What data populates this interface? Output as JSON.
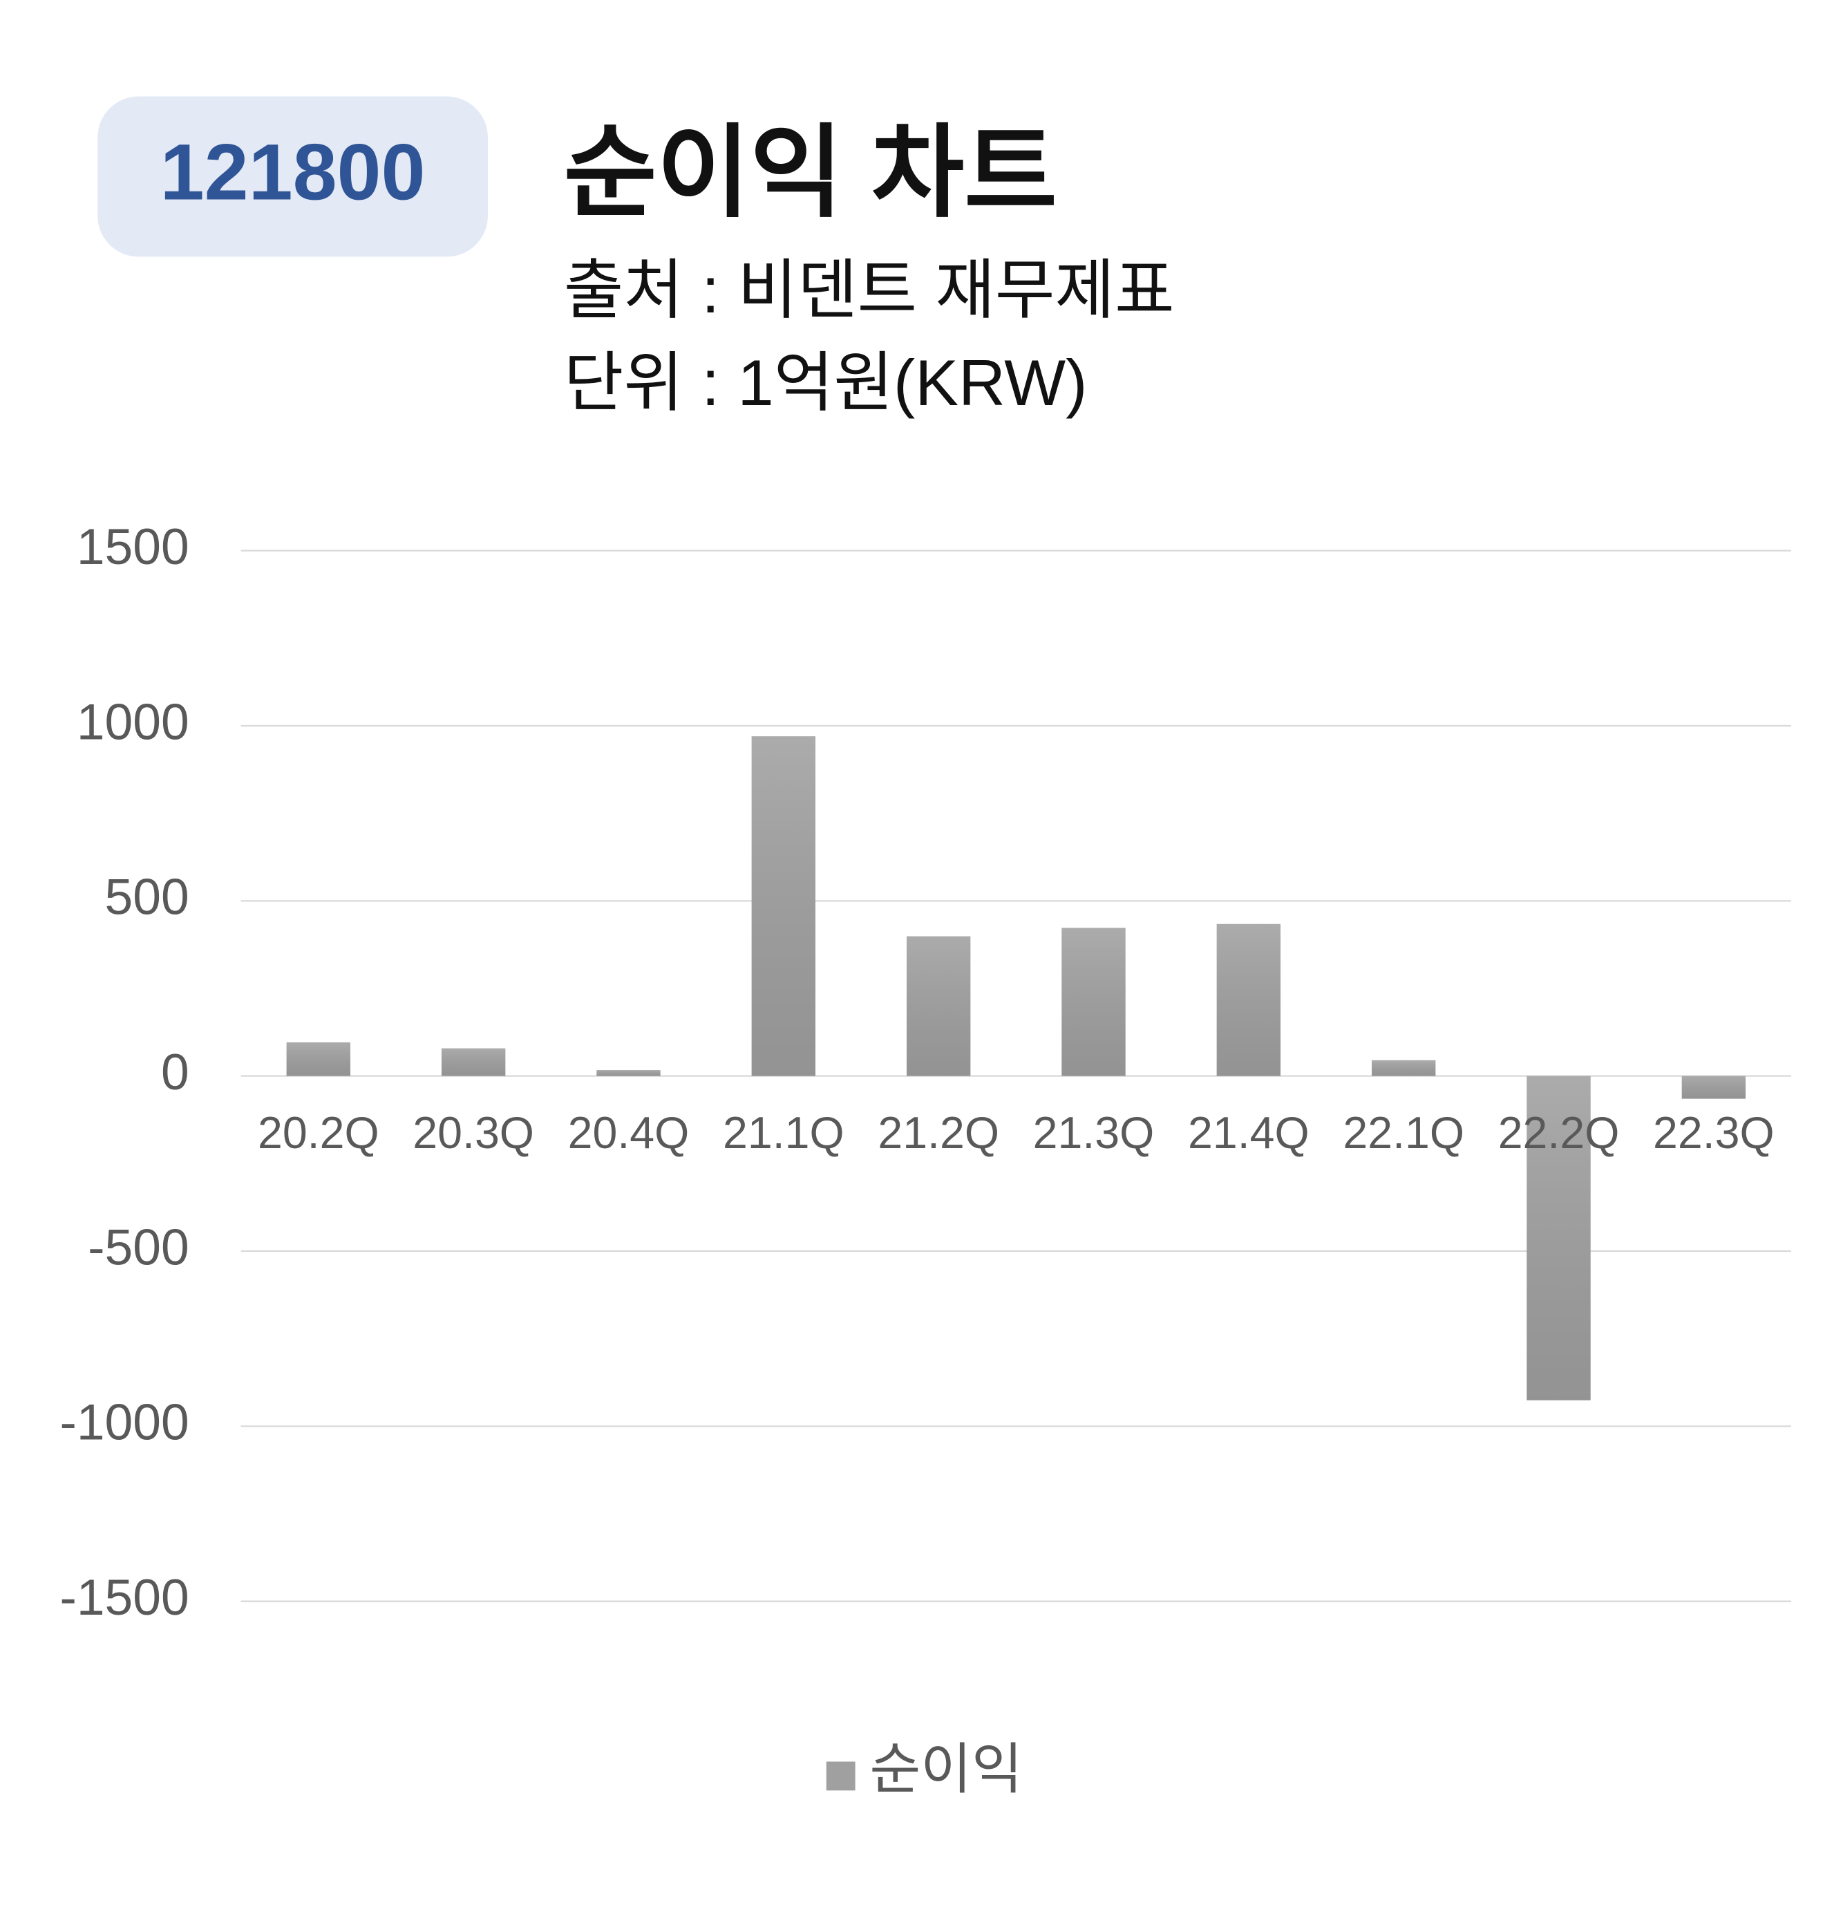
{
  "badge": "121800",
  "chart_data": {
    "type": "bar",
    "title": "순이익 차트",
    "subtitle": [
      "출처 : 비덴트 재무제표",
      "단위 : 1억원(KRW)"
    ],
    "categories": [
      "20.2Q",
      "20.3Q",
      "20.4Q",
      "21.1Q",
      "21.2Q",
      "21.3Q",
      "21.4Q",
      "22.1Q",
      "22.2Q",
      "22.3Q"
    ],
    "series": [
      {
        "name": "순이익",
        "color": "#a0a0a0",
        "values": [
          96,
          79,
          17,
          970,
          399,
          423,
          434,
          45,
          -926,
          -65
        ]
      }
    ],
    "ylim": [
      -1500,
      1500
    ],
    "yticks": [
      -1500,
      -1000,
      -500,
      0,
      500,
      1000,
      1500
    ],
    "grid": true,
    "legend": "bottom"
  }
}
